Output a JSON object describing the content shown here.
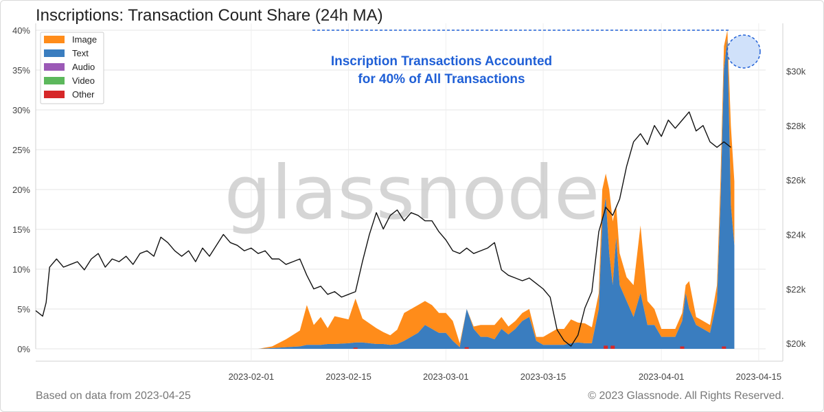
{
  "title": "Inscriptions: Transaction Count Share (24h MA)",
  "footer": {
    "left": "Based on data from 2023-04-25",
    "right": "© 2023 Glassnode. All Rights Reserved."
  },
  "watermark": "glassnode",
  "colors": {
    "image": "#ff8c1a",
    "text": "#3a7dbf",
    "audio": "#9b59b6",
    "video": "#5cb85c",
    "other": "#d62728",
    "price": "#111111",
    "annotation": "#1f5fd6"
  },
  "chart_data": {
    "type": "area",
    "title": "Inscriptions: Transaction Count Share (24h MA)",
    "x_ticks": [
      "2023-02-01",
      "2023-02-15",
      "2023-03-01",
      "2023-03-15",
      "2023-04-01",
      "2023-04-15"
    ],
    "y_left": {
      "label": "",
      "ticks": [
        "0%",
        "5%",
        "10%",
        "15%",
        "20%",
        "25%",
        "30%",
        "35%",
        "40%"
      ],
      "range": [
        0,
        40
      ]
    },
    "y_right": {
      "label": "",
      "ticks": [
        "$20k",
        "$22k",
        "$24k",
        "$26k",
        "$28k",
        "$30k"
      ],
      "range": [
        19800,
        31500
      ]
    },
    "legend": {
      "position": "top-left",
      "items": [
        {
          "key": "image",
          "label": "Image"
        },
        {
          "key": "text",
          "label": "Text"
        },
        {
          "key": "audio",
          "label": "Audio"
        },
        {
          "key": "video",
          "label": "Video"
        },
        {
          "key": "other",
          "label": "Other"
        }
      ]
    },
    "annotation": {
      "lines": [
        "Inscription Transactions Accounted",
        "for 40% of All Transactions"
      ],
      "value": 40
    },
    "x_range_days": [
      0,
      105
    ],
    "series_share": [
      {
        "day": 32,
        "text": 0.0,
        "image": 0.0
      },
      {
        "day": 34,
        "text": 0.1,
        "image": 0.2
      },
      {
        "day": 36,
        "text": 0.2,
        "image": 1.0
      },
      {
        "day": 38,
        "text": 0.3,
        "image": 2.0
      },
      {
        "day": 39,
        "text": 0.5,
        "image": 5.0
      },
      {
        "day": 40,
        "text": 0.5,
        "image": 2.5
      },
      {
        "day": 41,
        "text": 0.5,
        "image": 3.5
      },
      {
        "day": 42,
        "text": 0.6,
        "image": 2.0
      },
      {
        "day": 43,
        "text": 0.6,
        "image": 3.5
      },
      {
        "day": 45,
        "text": 0.7,
        "image": 3.0
      },
      {
        "day": 46,
        "text": 0.8,
        "image": 5.5
      },
      {
        "day": 47,
        "text": 0.8,
        "image": 3.0
      },
      {
        "day": 48,
        "text": 0.7,
        "image": 2.5
      },
      {
        "day": 49,
        "text": 0.6,
        "image": 2.0
      },
      {
        "day": 50,
        "text": 0.6,
        "image": 1.5
      },
      {
        "day": 51,
        "text": 0.5,
        "image": 1.2
      },
      {
        "day": 52,
        "text": 0.6,
        "image": 1.8
      },
      {
        "day": 53,
        "text": 1.0,
        "image": 3.5
      },
      {
        "day": 55,
        "text": 2.0,
        "image": 3.5
      },
      {
        "day": 56,
        "text": 3.0,
        "image": 3.0
      },
      {
        "day": 57,
        "text": 2.5,
        "image": 3.0
      },
      {
        "day": 58,
        "text": 2.0,
        "image": 2.5
      },
      {
        "day": 59,
        "text": 2.0,
        "image": 2.5
      },
      {
        "day": 60,
        "text": 1.0,
        "image": 2.5
      },
      {
        "day": 61,
        "text": 0.2,
        "image": 0.5
      },
      {
        "day": 62,
        "text": 5.0,
        "image": 0.0
      },
      {
        "day": 63,
        "text": 2.5,
        "image": 0.3
      },
      {
        "day": 64,
        "text": 1.5,
        "image": 1.5
      },
      {
        "day": 65,
        "text": 1.5,
        "image": 1.5
      },
      {
        "day": 66,
        "text": 1.2,
        "image": 1.8
      },
      {
        "day": 67,
        "text": 2.5,
        "image": 1.5
      },
      {
        "day": 68,
        "text": 1.8,
        "image": 1.0
      },
      {
        "day": 69,
        "text": 2.5,
        "image": 1.0
      },
      {
        "day": 70,
        "text": 3.5,
        "image": 1.0
      },
      {
        "day": 71,
        "text": 4.0,
        "image": 1.0
      },
      {
        "day": 72,
        "text": 1.0,
        "image": 0.5
      },
      {
        "day": 73,
        "text": 0.5,
        "image": 1.0
      },
      {
        "day": 74,
        "text": 0.5,
        "image": 1.5
      },
      {
        "day": 75,
        "text": 0.5,
        "image": 2.0
      },
      {
        "day": 76,
        "text": 0.5,
        "image": 2.0
      },
      {
        "day": 77,
        "text": 0.7,
        "image": 3.0
      },
      {
        "day": 78,
        "text": 0.8,
        "image": 2.5
      },
      {
        "day": 79,
        "text": 0.7,
        "image": 2.5
      },
      {
        "day": 80,
        "text": 0.7,
        "image": 2.0
      },
      {
        "day": 81,
        "text": 5.0,
        "image": 2.0
      },
      {
        "day": 81.5,
        "text": 16.0,
        "image": 4.0
      },
      {
        "day": 82,
        "text": 19.0,
        "image": 3.0
      },
      {
        "day": 82.5,
        "text": 12.0,
        "image": 8.0
      },
      {
        "day": 83,
        "text": 8.0,
        "image": 8.0
      },
      {
        "day": 83.5,
        "text": 14.0,
        "image": 4.0
      },
      {
        "day": 84,
        "text": 8.0,
        "image": 4.0
      },
      {
        "day": 85,
        "text": 6.0,
        "image": 3.0
      },
      {
        "day": 86,
        "text": 4.0,
        "image": 4.0
      },
      {
        "day": 87,
        "text": 7.0,
        "image": 8.5
      },
      {
        "day": 88,
        "text": 3.0,
        "image": 3.0
      },
      {
        "day": 89,
        "text": 3.0,
        "image": 2.0
      },
      {
        "day": 90,
        "text": 1.5,
        "image": 1.0
      },
      {
        "day": 91,
        "text": 1.5,
        "image": 1.0
      },
      {
        "day": 92,
        "text": 1.5,
        "image": 1.0
      },
      {
        "day": 93,
        "text": 3.5,
        "image": 1.0
      },
      {
        "day": 93.5,
        "text": 7.0,
        "image": 1.0
      },
      {
        "day": 94,
        "text": 5.0,
        "image": 3.5
      },
      {
        "day": 95,
        "text": 3.0,
        "image": 1.0
      },
      {
        "day": 96,
        "text": 2.5,
        "image": 1.0
      },
      {
        "day": 97,
        "text": 2.0,
        "image": 1.0
      },
      {
        "day": 98,
        "text": 6.0,
        "image": 2.0
      },
      {
        "day": 98.5,
        "text": 18.0,
        "image": 3.0
      },
      {
        "day": 99,
        "text": 35.0,
        "image": 3.0
      },
      {
        "day": 99.5,
        "text": 39.0,
        "image": 1.0
      },
      {
        "day": 100,
        "text": 18.0,
        "image": 10.0
      },
      {
        "day": 100.5,
        "text": 13.0,
        "image": 8.0
      }
    ],
    "series_other": [
      {
        "day": 46,
        "value": 0.15
      },
      {
        "day": 62,
        "value": 0.2
      },
      {
        "day": 82,
        "value": 0.4
      },
      {
        "day": 83,
        "value": 0.4
      },
      {
        "day": 93,
        "value": 0.3
      },
      {
        "day": 99,
        "value": 0.3
      }
    ],
    "series_price": [
      [
        0,
        21200
      ],
      [
        1,
        21000
      ],
      [
        1.5,
        21500
      ],
      [
        2,
        22800
      ],
      [
        3,
        23100
      ],
      [
        4,
        22800
      ],
      [
        5,
        22900
      ],
      [
        6,
        23000
      ],
      [
        7,
        22700
      ],
      [
        8,
        23100
      ],
      [
        9,
        23300
      ],
      [
        10,
        22800
      ],
      [
        11,
        23100
      ],
      [
        12,
        23000
      ],
      [
        13,
        23200
      ],
      [
        14,
        22900
      ],
      [
        15,
        23300
      ],
      [
        16,
        23400
      ],
      [
        17,
        23200
      ],
      [
        18,
        23900
      ],
      [
        19,
        23700
      ],
      [
        20,
        23400
      ],
      [
        21,
        23200
      ],
      [
        22,
        23400
      ],
      [
        23,
        23000
      ],
      [
        24,
        23500
      ],
      [
        25,
        23200
      ],
      [
        26,
        23600
      ],
      [
        27,
        24000
      ],
      [
        28,
        23700
      ],
      [
        29,
        23600
      ],
      [
        30,
        23400
      ],
      [
        31,
        23500
      ],
      [
        32,
        23300
      ],
      [
        33,
        23400
      ],
      [
        34,
        23100
      ],
      [
        35,
        23100
      ],
      [
        36,
        22900
      ],
      [
        37,
        23000
      ],
      [
        38,
        23100
      ],
      [
        39,
        22500
      ],
      [
        40,
        22000
      ],
      [
        41,
        22100
      ],
      [
        42,
        21800
      ],
      [
        43,
        21900
      ],
      [
        44,
        21700
      ],
      [
        45,
        21800
      ],
      [
        46,
        21900
      ],
      [
        47,
        23000
      ],
      [
        48,
        24000
      ],
      [
        49,
        24800
      ],
      [
        50,
        24200
      ],
      [
        51,
        24700
      ],
      [
        52,
        24900
      ],
      [
        53,
        24500
      ],
      [
        54,
        24800
      ],
      [
        55,
        24700
      ],
      [
        56,
        24500
      ],
      [
        57,
        24500
      ],
      [
        58,
        24100
      ],
      [
        59,
        23800
      ],
      [
        60,
        23400
      ],
      [
        61,
        23300
      ],
      [
        62,
        23500
      ],
      [
        63,
        23300
      ],
      [
        64,
        23400
      ],
      [
        65,
        23500
      ],
      [
        66,
        23700
      ],
      [
        67,
        22700
      ],
      [
        68,
        22500
      ],
      [
        69,
        22400
      ],
      [
        70,
        22300
      ],
      [
        71,
        22400
      ],
      [
        72,
        22200
      ],
      [
        73,
        22000
      ],
      [
        74,
        21700
      ],
      [
        75,
        20500
      ],
      [
        76,
        20100
      ],
      [
        77,
        19900
      ],
      [
        78,
        20300
      ],
      [
        79,
        21300
      ],
      [
        80,
        21900
      ],
      [
        81,
        24100
      ],
      [
        82,
        25000
      ],
      [
        83,
        24700
      ],
      [
        84,
        25300
      ],
      [
        85,
        26500
      ],
      [
        86,
        27400
      ],
      [
        87,
        27700
      ],
      [
        88,
        27300
      ],
      [
        89,
        28000
      ],
      [
        90,
        27600
      ],
      [
        91,
        28200
      ],
      [
        92,
        27900
      ],
      [
        93,
        28200
      ],
      [
        94,
        28500
      ],
      [
        95,
        27800
      ],
      [
        96,
        28000
      ],
      [
        97,
        27400
      ],
      [
        98,
        27200
      ],
      [
        99,
        27400
      ],
      [
        100,
        27200
      ]
    ]
  }
}
